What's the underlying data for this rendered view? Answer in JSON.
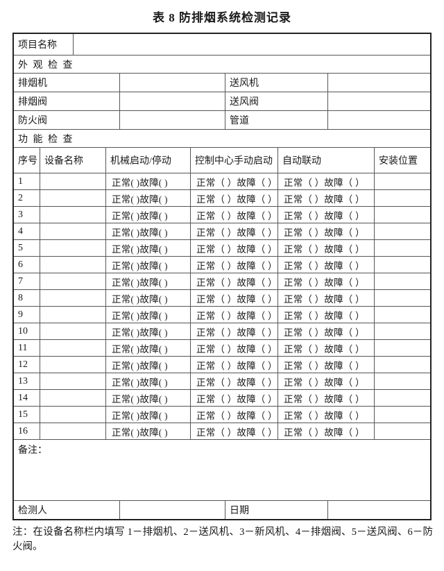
{
  "title": "表 8 防排烟系统检测记录",
  "colors": {
    "background": "#ffffff",
    "text": "#1a1a1a",
    "grid_line": "#555555",
    "outer_border": "#222222"
  },
  "project": {
    "label": "项目名称",
    "value": ""
  },
  "sections": {
    "appearance": {
      "header": "外 观 检 查",
      "rows": [
        {
          "label1": "排烟机",
          "value1": "",
          "label2": "送风机",
          "value2": ""
        },
        {
          "label1": "排烟阀",
          "value1": "",
          "label2": "送风阀",
          "value2": ""
        },
        {
          "label1": "防火阀",
          "value1": "",
          "label2": "管道",
          "value2": ""
        }
      ]
    },
    "function": {
      "header": "功 能 检 查",
      "columns": [
        "序号",
        "设备名称",
        "机械启动/停动",
        "控制中心手动启动",
        "自动联动",
        "安装位置"
      ],
      "rows": [
        {
          "no": "1",
          "device": "",
          "mechanical": "正常( )故障( )",
          "control": "正常（ ）故障（ ）",
          "auto": "正常（ ）故障（ ）",
          "location": ""
        },
        {
          "no": "2",
          "device": "",
          "mechanical": "正常( )故障( )",
          "control": "正常（ ）故障（ ）",
          "auto": "正常（ ）故障（ ）",
          "location": ""
        },
        {
          "no": "3",
          "device": "",
          "mechanical": "正常( )故障( )",
          "control": "正常（ ）故障（ ）",
          "auto": "正常（ ）故障（ ）",
          "location": ""
        },
        {
          "no": "4",
          "device": "",
          "mechanical": "正常( )故障( )",
          "control": "正常（ ）故障（ ）",
          "auto": "正常（ ）故障（ ）",
          "location": ""
        },
        {
          "no": "5",
          "device": "",
          "mechanical": "正常( )故障( )",
          "control": "正常（ ）故障（ ）",
          "auto": "正常（ ）故障（ ）",
          "location": ""
        },
        {
          "no": "6",
          "device": "",
          "mechanical": "正常( )故障( )",
          "control": "正常（ ）故障（ ）",
          "auto": "正常（ ）故障（ ）",
          "location": ""
        },
        {
          "no": "7",
          "device": "",
          "mechanical": "正常( )故障( )",
          "control": "正常（ ）故障（ ）",
          "auto": "正常（ ）故障（ ）",
          "location": ""
        },
        {
          "no": "8",
          "device": "",
          "mechanical": "正常( )故障( )",
          "control": "正常（ ）故障（ ）",
          "auto": "正常（ ）故障（ ）",
          "location": ""
        },
        {
          "no": "9",
          "device": "",
          "mechanical": "正常( )故障( )",
          "control": "正常（ ）故障（ ）",
          "auto": "正常（ ）故障（ ）",
          "location": ""
        },
        {
          "no": "10",
          "device": "",
          "mechanical": "正常( )故障( )",
          "control": "正常（ ）故障（ ）",
          "auto": "正常（ ）故障（ ）",
          "location": ""
        },
        {
          "no": "11",
          "device": "",
          "mechanical": "正常( )故障( )",
          "control": "正常（ ）故障（ ）",
          "auto": "正常（ ）故障（ ）",
          "location": ""
        },
        {
          "no": "12",
          "device": "",
          "mechanical": "正常( )故障( )",
          "control": "正常（ ）故障（ ）",
          "auto": "正常（ ）故障（ ）",
          "location": ""
        },
        {
          "no": "13",
          "device": "",
          "mechanical": "正常( )故障( )",
          "control": "正常（ ）故障（ ）",
          "auto": "正常（ ）故障（ ）",
          "location": ""
        },
        {
          "no": "14",
          "device": "",
          "mechanical": "正常( )故障( )",
          "control": "正常（ ）故障（ ）",
          "auto": "正常（ ）故障（ ）",
          "location": ""
        },
        {
          "no": "15",
          "device": "",
          "mechanical": "正常( )故障( )",
          "control": "正常（ ）故障（ ）",
          "auto": "正常（ ）故障（ ）",
          "location": ""
        },
        {
          "no": "16",
          "device": "",
          "mechanical": "正常( )故障( )",
          "control": "正常（ ）故障（ ）",
          "auto": "正常（ ）故障（ ）",
          "location": ""
        }
      ]
    }
  },
  "remarks": {
    "label": "备注：",
    "value": ""
  },
  "footer": {
    "inspector_label": "检测人",
    "inspector_value": "",
    "date_label": "日期",
    "date_value": ""
  },
  "note": {
    "text": "注：在设备名称栏内填写 1－排烟机、2－送风机、3－新风机、4－排烟阀、5－送风阀、6－防火阀。"
  }
}
